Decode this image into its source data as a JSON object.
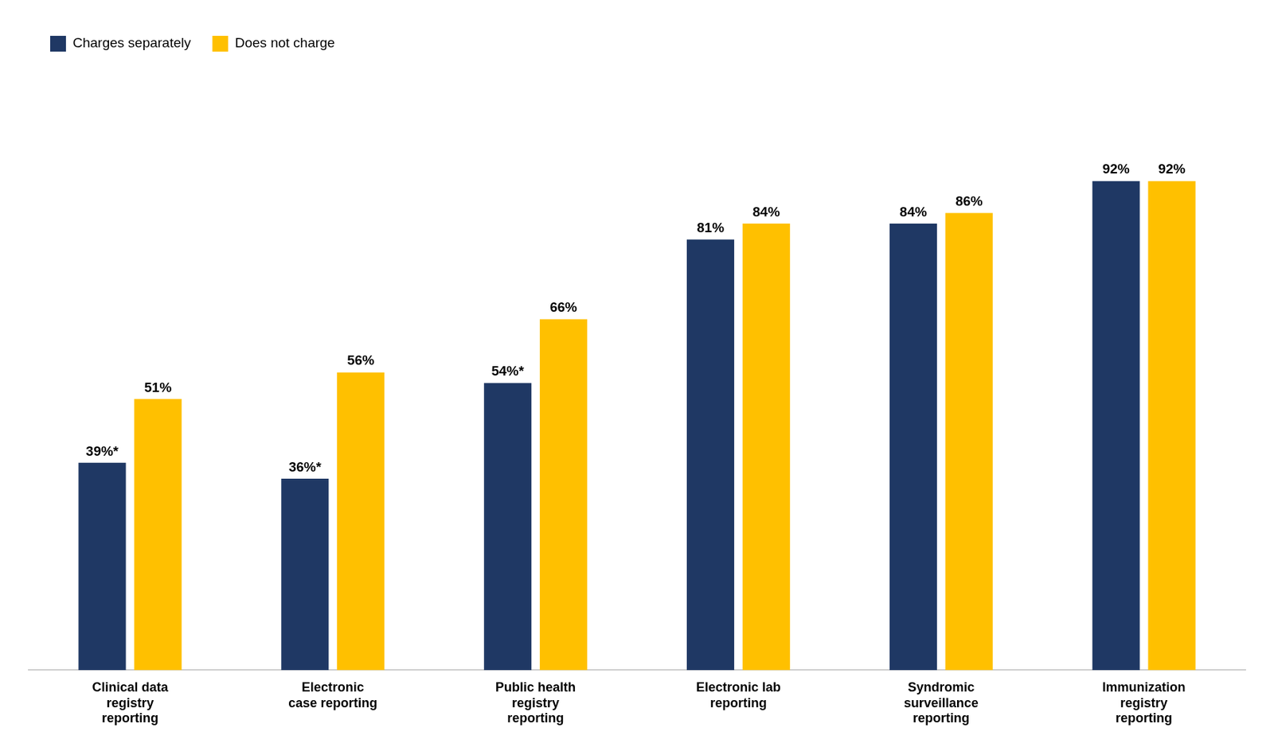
{
  "chart_data": {
    "type": "bar",
    "categories": [
      "Clinical data\nregistry\nreporting",
      "Electronic\ncase reporting",
      "Public health\nregistry\nreporting",
      "Electronic lab\nreporting",
      "Syndromic\nsurveillance\nreporting",
      "Immunization\nregistry\nreporting"
    ],
    "series": [
      {
        "name": "Charges separately",
        "color": "#1F3864",
        "values": [
          39,
          36,
          54,
          81,
          84,
          92
        ],
        "value_labels": [
          "39%*",
          "36%*",
          "54%*",
          "81%",
          "84%",
          "92%"
        ]
      },
      {
        "name": "Does not charge",
        "color": "#FFC000",
        "values": [
          51,
          56,
          66,
          84,
          86,
          92
        ],
        "value_labels": [
          "51%",
          "56%",
          "66%",
          "84%",
          "86%",
          "92%"
        ]
      }
    ],
    "ylim": [
      0,
      115
    ],
    "grid": false,
    "legend": "upper left",
    "data_labels": true,
    "tick_labels": "x"
  }
}
